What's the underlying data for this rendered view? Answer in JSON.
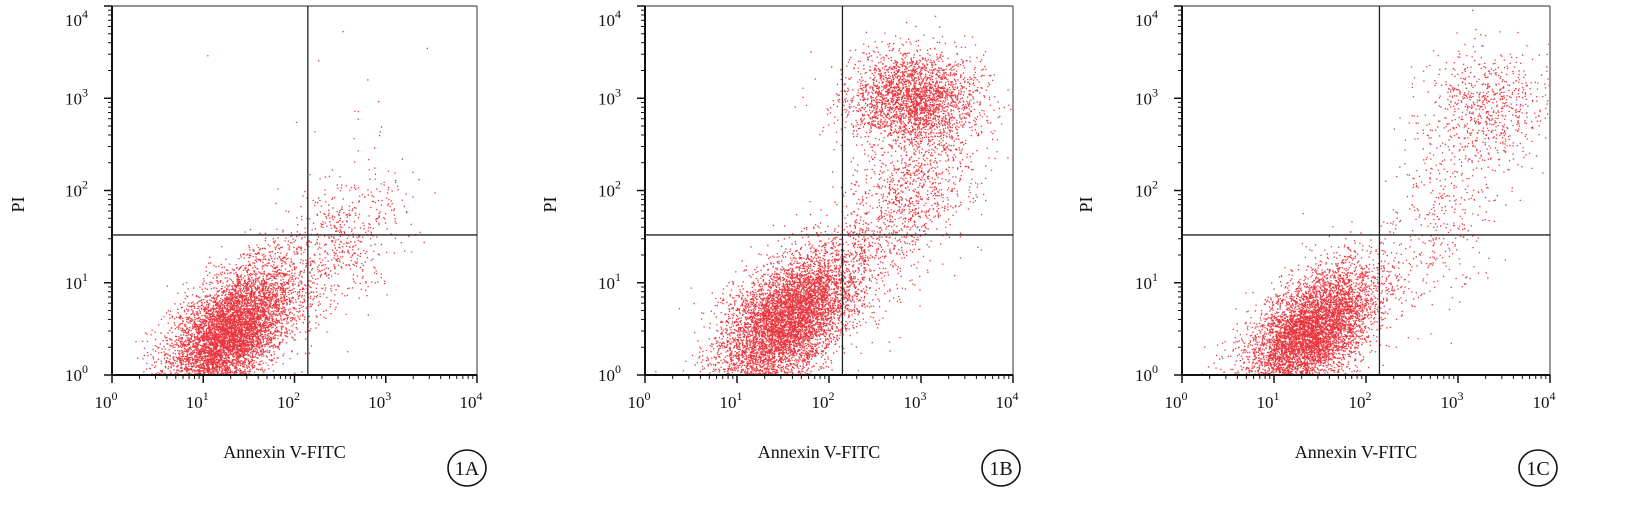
{
  "figure": {
    "colors": {
      "points": "#e8202a",
      "axis": "#111111",
      "frame": "#555555",
      "quadrant": "#222222"
    }
  },
  "chart_data": [
    {
      "type": "scatter",
      "panel_label": "1A",
      "xlabel": "Annexin V-FITC",
      "ylabel": "PI",
      "x_scale": "log",
      "y_scale": "log",
      "xlim": [
        1,
        10000
      ],
      "ylim": [
        1,
        10000
      ],
      "x_ticks": [
        "10",
        "10",
        "10",
        "10",
        "10"
      ],
      "x_tick_exponents": [
        "0",
        "1",
        "2",
        "3",
        "4"
      ],
      "y_ticks": [
        "10",
        "10",
        "10",
        "10",
        "10"
      ],
      "y_tick_exponents": [
        "0",
        "1",
        "2",
        "3",
        "4"
      ],
      "quadrant_gate": {
        "x": 140,
        "y": 33
      },
      "clusters": [
        {
          "name": "",
          "center": [
            20,
            3
          ],
          "spread_log": [
            0.35,
            0.3
          ],
          "tilt": 0.55,
          "count": 6500
        },
        {
          "name": "",
          "center": [
            300,
            25
          ],
          "spread_log": [
            0.35,
            0.35
          ],
          "tilt": 0.5,
          "count": 600
        },
        {
          "name": "",
          "center": [
            400,
            600
          ],
          "spread_log": [
            0.6,
            0.6
          ],
          "tilt": 0,
          "count": 15
        }
      ]
    },
    {
      "type": "scatter",
      "panel_label": "1B",
      "xlabel": "Annexin V-FITC",
      "ylabel": "PI",
      "x_scale": "log",
      "y_scale": "log",
      "xlim": [
        1,
        10000
      ],
      "ylim": [
        1,
        10000
      ],
      "x_ticks": [
        "10",
        "10",
        "10",
        "10",
        "10"
      ],
      "x_tick_exponents": [
        "0",
        "1",
        "2",
        "3",
        "4"
      ],
      "y_ticks": [
        "10",
        "10",
        "10",
        "10",
        "10"
      ],
      "y_tick_exponents": [
        "0",
        "1",
        "2",
        "3",
        "4"
      ],
      "quadrant_gate": {
        "x": 140,
        "y": 33
      },
      "clusters": [
        {
          "name": "",
          "center": [
            35,
            4
          ],
          "spread_log": [
            0.38,
            0.32
          ],
          "tilt": 0.55,
          "count": 6500
        },
        {
          "name": "",
          "center": [
            800,
            1000
          ],
          "spread_log": [
            0.35,
            0.25
          ],
          "tilt": 0,
          "count": 2600
        },
        {
          "name": "",
          "center": [
            500,
            60
          ],
          "spread_log": [
            0.35,
            0.45
          ],
          "tilt": 0.6,
          "count": 900
        },
        {
          "name": "",
          "center": [
            1500,
            200
          ],
          "spread_log": [
            0.3,
            0.35
          ],
          "tilt": 0,
          "count": 300
        }
      ]
    },
    {
      "type": "scatter",
      "panel_label": "1C",
      "xlabel": "Annexin V-FITC",
      "ylabel": "PI",
      "x_scale": "log",
      "y_scale": "log",
      "xlim": [
        1,
        10000
      ],
      "ylim": [
        1,
        10000
      ],
      "x_ticks": [
        "10",
        "10",
        "10",
        "10",
        "10"
      ],
      "x_tick_exponents": [
        "0",
        "1",
        "2",
        "3",
        "4"
      ],
      "y_ticks": [
        "10",
        "10",
        "10",
        "10",
        "10"
      ],
      "y_tick_exponents": [
        "0",
        "1",
        "2",
        "3",
        "4"
      ],
      "quadrant_gate": {
        "x": 140,
        "y": 33
      },
      "clusters": [
        {
          "name": "",
          "center": [
            25,
            3
          ],
          "spread_log": [
            0.36,
            0.3
          ],
          "tilt": 0.55,
          "count": 6000
        },
        {
          "name": "",
          "center": [
            2000,
            900
          ],
          "spread_log": [
            0.35,
            0.3
          ],
          "tilt": 0,
          "count": 700
        },
        {
          "name": "",
          "center": [
            700,
            60
          ],
          "spread_log": [
            0.35,
            0.5
          ],
          "tilt": 0.7,
          "count": 400
        }
      ]
    }
  ]
}
